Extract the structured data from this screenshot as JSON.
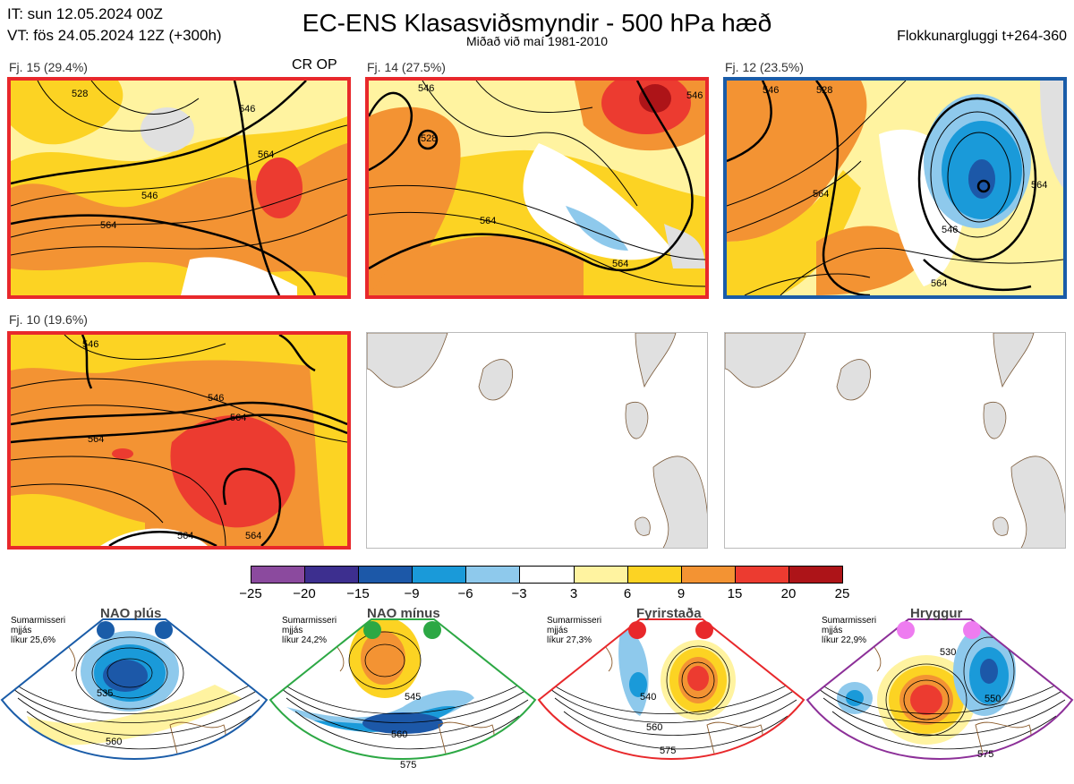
{
  "header": {
    "it_line": "IT: sun 12.05.2024 00Z",
    "vt_line": "VT: fös 24.05.2024 12Z  (+300h)",
    "title": "EC-ENS Klasasviðsmyndir - 500 hPa hæð",
    "subtitle": "Miðað við maí 1981-2010",
    "window": "Flokkunargluggi t+264-360"
  },
  "panels": [
    {
      "label": "Fj. 15 (29.4%)",
      "border": "#e8282b",
      "extra": "CR OP",
      "contours": [
        "528",
        "546",
        "564",
        "564",
        "546"
      ]
    },
    {
      "label": "Fj. 14 (27.5%)",
      "border": "#e8282b",
      "extra": "",
      "contours": [
        "528",
        "546",
        "564",
        "564",
        "546"
      ]
    },
    {
      "label": "Fj. 12 (23.5%)",
      "border": "#1a5ca8",
      "extra": "",
      "contours": [
        "546",
        "528",
        "564",
        "564",
        "546",
        "564"
      ]
    },
    {
      "label": "Fj. 10 (19.6%)",
      "border": "#e8282b",
      "extra": "",
      "contours": [
        "546",
        "546",
        "564",
        "564",
        "564",
        "564"
      ]
    }
  ],
  "colorbar": {
    "ticks": [
      "−25",
      "−20",
      "−15",
      "−9",
      "−6",
      "−3",
      "3",
      "6",
      "9",
      "15",
      "20",
      "25"
    ],
    "colors": [
      "#8b4a9e",
      "#3d2f8f",
      "#1c58a8",
      "#1a9ad9",
      "#8ec9ec",
      "#ffffff",
      "#fff3a0",
      "#fcd323",
      "#f39333",
      "#ec3b30",
      "#ad1418"
    ]
  },
  "regimes": [
    {
      "name": "NAO plús",
      "note": [
        "Sumarmisseri",
        "mjjás",
        "líkur 25,6%"
      ],
      "color": "#1a5ca8",
      "contours": [
        "535",
        "560"
      ]
    },
    {
      "name": "NAO mínus",
      "note": [
        "Sumarmisseri",
        "mjjás",
        "líkur 24,2%"
      ],
      "color": "#2ca844",
      "contours": [
        "545",
        "560",
        "575"
      ]
    },
    {
      "name": "Fyrirstaða",
      "note": [
        "Sumarmisseri",
        "mjjás",
        "líkur 27,3%"
      ],
      "color": "#e8282b",
      "contours": [
        "540",
        "560",
        "575"
      ]
    },
    {
      "name": "Hryggur",
      "note": [
        "Sumarmisseri",
        "mjjás",
        "líkur 22,9%"
      ],
      "color": "#8c2f98",
      "contours": [
        "530",
        "550",
        "575"
      ]
    }
  ]
}
